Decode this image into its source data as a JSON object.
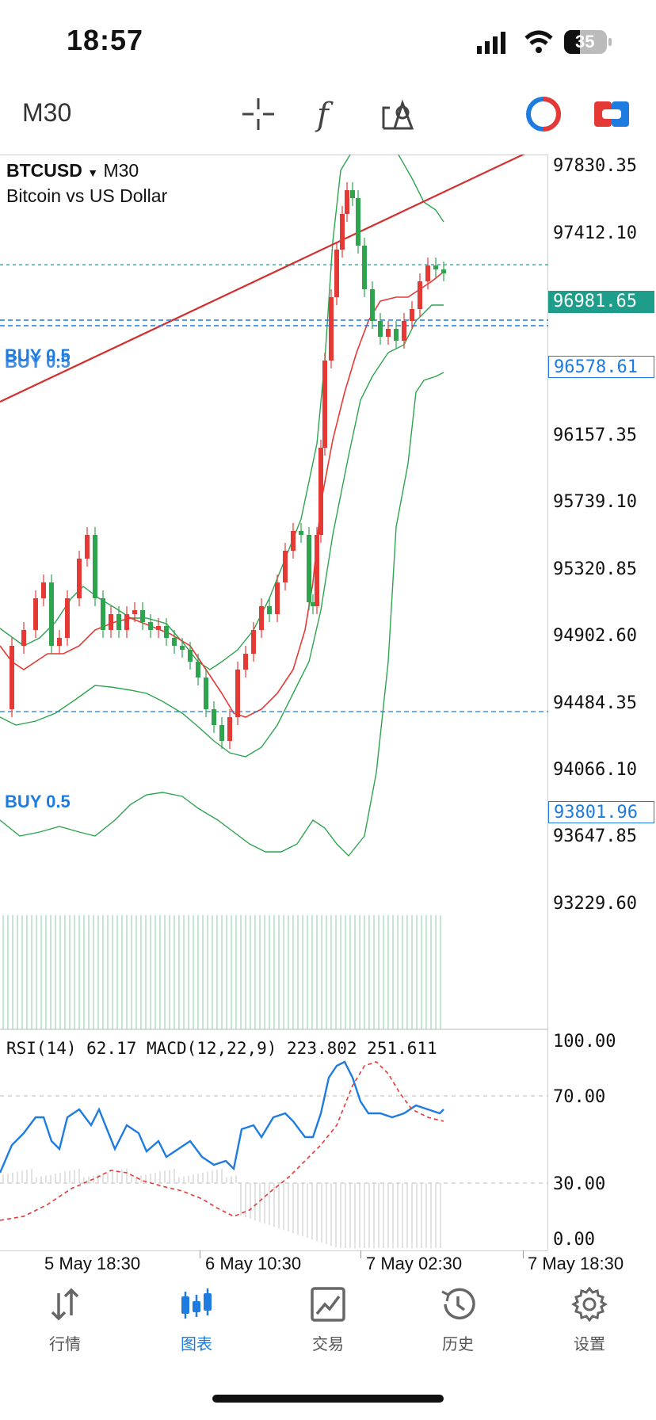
{
  "status_bar": {
    "time": "18:57",
    "battery": "35"
  },
  "toolbar": {
    "timeframe": "M30"
  },
  "chart": {
    "symbol": "BTCUSD",
    "timeframe": "M30",
    "description": "Bitcoin vs US Dollar",
    "price_scale": [
      "97830.35",
      "97412.10",
      "96981.65",
      "96578.61",
      "96157.35",
      "95739.10",
      "95320.85",
      "94902.60",
      "94484.35",
      "94066.10",
      "93801.96",
      "93647.85",
      "93229.60"
    ],
    "current_price": "96981.65",
    "order_price_1": "96578.61",
    "order_price_2": "93801.96",
    "order_label_1a": "BUY 0.5",
    "order_label_1b": "BUY 0.5",
    "order_label_2": "BUY 0.5",
    "colors": {
      "up": "#e53935",
      "down": "#2ea44f",
      "current": "#1e9e8a",
      "order": "#1e7be0",
      "trendline": "#d32f2f"
    }
  },
  "indicator": {
    "rsi_label": "RSI(14) 62.17",
    "macd_label": "MACD(12,22,9) 223.802 251.611",
    "levels": [
      "100.00",
      "70.00",
      "30.00",
      "0.00"
    ]
  },
  "x_axis": [
    "5 May 18:30",
    "6 May 10:30",
    "7 May 02:30",
    "7 May 18:30"
  ],
  "nav": [
    {
      "label": "行情",
      "icon": "quotes-arrows-icon"
    },
    {
      "label": "图表",
      "icon": "candlestick-chart-icon",
      "active": true
    },
    {
      "label": "交易",
      "icon": "trade-chart-icon"
    },
    {
      "label": "历史",
      "icon": "history-clock-icon"
    },
    {
      "label": "设置",
      "icon": "gear-icon"
    }
  ]
}
